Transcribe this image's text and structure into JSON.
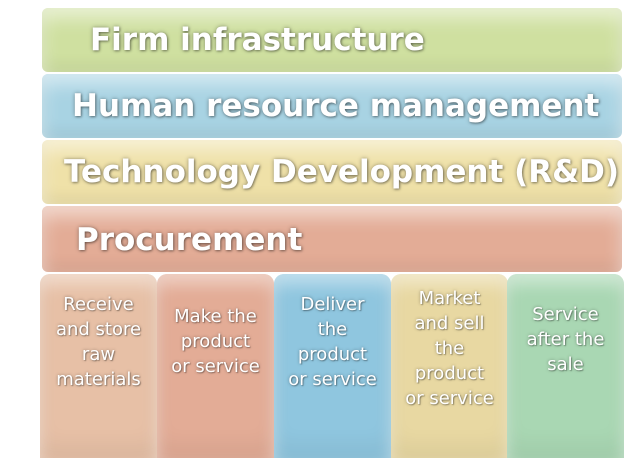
{
  "support_activities": [
    {
      "label": "Firm infrastructure",
      "color": "#cfe0a0"
    },
    {
      "label": "Human resource management",
      "color": "#a8d3e3"
    },
    {
      "label": "Technology Development (R&D)",
      "color": "#efe1a8"
    },
    {
      "label": "Procurement",
      "color": "#e3ac96"
    }
  ],
  "primary_activities": [
    {
      "label": "Receive\nand store\nraw\nmaterials",
      "color": "#e7c0a6"
    },
    {
      "label": "Make the\nproduct\nor service",
      "color": "#e3ac96"
    },
    {
      "label": "Deliver\nthe\nproduct\nor service",
      "color": "#8fc6df"
    },
    {
      "label": "Market\nand sell\nthe\nproduct\nor service",
      "color": "#e8d8a2"
    },
    {
      "label": "Service\nafter the\nsale",
      "color": "#a9d7b3"
    }
  ]
}
